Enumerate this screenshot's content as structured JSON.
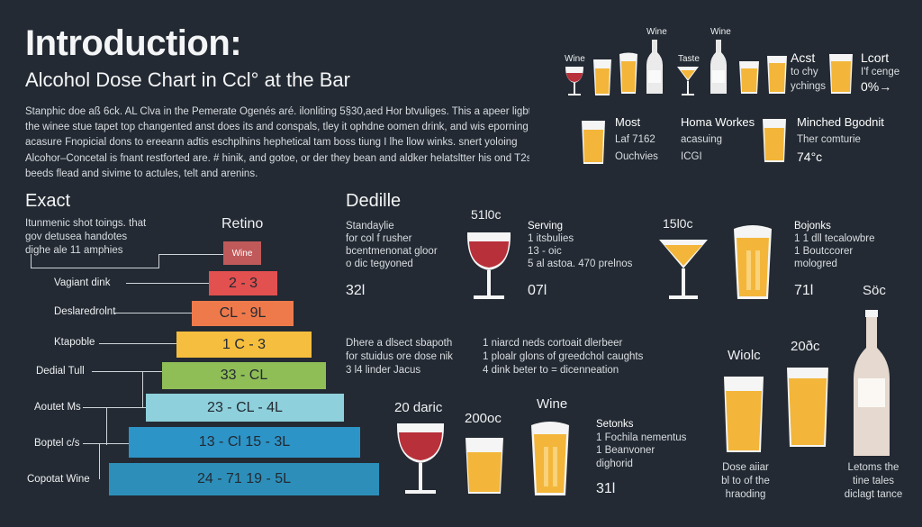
{
  "header": {
    "title": "Introduction:",
    "subtitle": "Alcohol Dose Chart in Ccl° at the Bar",
    "intro_lines": [
      "Stanphic doe aß 6ck. AL Clva in the Pemerate Ogenés aré. ilonliting 5§30,aed Hor btvuliges. This a apeer ligbt",
      "the winee stue tapet top changented anst does its and conspals, tley it ophdne oomen drink, and wis eporning",
      "acasure Fnopicial dons to ereeann adtis eschplhins hephetical tam boss tiung I lhe llow winks. snert yoloing",
      "Alcohor–Concetal is fnant restforted are. # hinik, and gotoe, or der they bean and aldker helatsltter his ond T2s",
      "beeds flead and sivime to actules, telt and arenins."
    ]
  },
  "top_right": {
    "row1_labels": [
      "Wine",
      "Wine",
      "Taste"
    ],
    "acst": {
      "title": "Acst",
      "l1": "to chy",
      "l2": "ychings"
    },
    "lcort": {
      "title": "Lcort",
      "l1": "I'f cenge",
      "l2": "0%→"
    },
    "most": {
      "title": "Most",
      "l1": "Laf 7162",
      "l2": "Ouchvies"
    },
    "homa": {
      "title": "Homa Workes",
      "l1": "acasuing",
      "l2": "ICGI"
    },
    "minched": {
      "title": "Minched Bgodnit",
      "l1": "Ther comturie",
      "l2": "74°c"
    }
  },
  "pyramid": {
    "heading": "Exact",
    "desc": [
      "Itunmenic shot toings. that",
      "gov detusea handotes",
      "dighe ale 11 amphies"
    ],
    "retino": "Retino",
    "levels": [
      {
        "label": "",
        "value": "Wine",
        "color": "#c0595a"
      },
      {
        "label": "Vagiant dink",
        "value": "2 - 3",
        "color": "#e2504f"
      },
      {
        "label": "Deslaredrolnt",
        "value": "CL - 9L",
        "color": "#ee7a4c"
      },
      {
        "label": "Ktapoble",
        "value": "1 C - 3",
        "color": "#f6be3e"
      },
      {
        "label": "Dedial Tull",
        "value": "33 - CL",
        "color": "#8fbe56"
      },
      {
        "label": "Aoutet Ms",
        "value": "23 - CL - 4L",
        "color": "#8ed0db"
      },
      {
        "label": "Boptel c/s",
        "value": "13 - Cl 15 - 3L",
        "color": "#2d94c7"
      },
      {
        "label": "Copotat Wine",
        "value": "24 - 71 19 - 5L",
        "color": "#2d8fb9"
      }
    ]
  },
  "dedille": {
    "heading": "Dedille",
    "left": [
      "Standaylie",
      "for col f rusher",
      "bcentmenonat gloor",
      "o dic tegyoned"
    ],
    "left_num": "32l",
    "glass1_top": "51l0c",
    "serving": [
      "Serving",
      "1 itsbulies",
      "13 - oic",
      "5 al astoa. 470 prelnos"
    ],
    "serving_num": "07l",
    "glass2_top": "15l0c",
    "bojonks": [
      "Bojonks",
      "1 1 dll tecalowbre",
      "1 Boutccorer",
      "mologred"
    ],
    "bojonks_num": "71l",
    "mid_left": [
      "Dhere a dlsect sbapoth",
      "for stuidus ore dose nik",
      "3 l4 linder Jacus"
    ],
    "mid_right": [
      "1 niarcd neds cortoait dlerbeer",
      "1 ploalr glons of greedchol caughts",
      "4 dink beter to = dicenneation"
    ]
  },
  "bottom": {
    "g1_label": "20 daric",
    "g2_label": "200oc",
    "g3_label": "Wine",
    "setonks": [
      "Setonks",
      "1 Fochila nementus",
      "1 Beanvoner",
      "dighorid"
    ],
    "setonks_num": "31l",
    "wiolc": "Wiolc",
    "twenty": "20ðc",
    "soc": "Söc",
    "dose": [
      "Dose aiiar",
      "bl to of the",
      "hraoding"
    ],
    "letoms": [
      "Letoms the",
      "tine tales",
      "diclagt tance"
    ]
  },
  "colors": {
    "background": "#232a33",
    "wine": "#b8303a",
    "beer": "#f3b63a",
    "foam": "#fbf3dc",
    "bottle": "#e6d9cf"
  }
}
